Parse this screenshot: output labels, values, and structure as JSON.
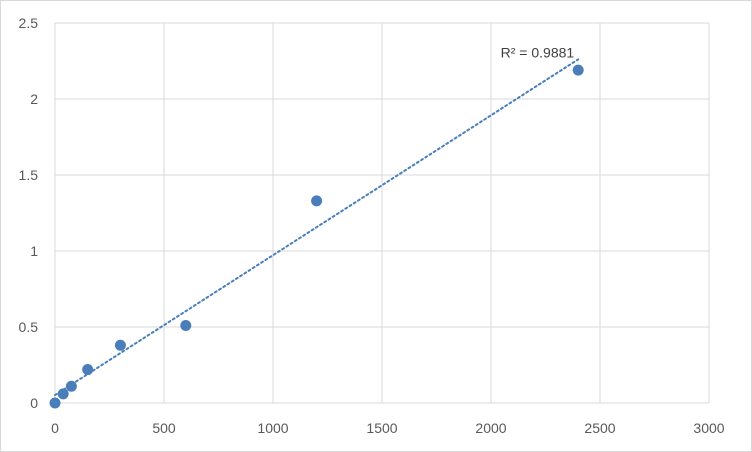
{
  "chart_data": {
    "type": "scatter",
    "title": "",
    "xlabel": "",
    "ylabel": "",
    "xlim": [
      0,
      3000
    ],
    "ylim": [
      0,
      2.5
    ],
    "x_ticks": [
      0,
      500,
      1000,
      1500,
      2000,
      2500,
      3000
    ],
    "y_ticks": [
      0,
      0.5,
      1,
      1.5,
      2,
      2.5
    ],
    "x_tick_labels": [
      "0",
      "500",
      "1000",
      "1500",
      "2000",
      "2500",
      "3000"
    ],
    "y_tick_labels": [
      "0",
      "0.5",
      "1",
      "1.5",
      "2",
      "2.5"
    ],
    "grid": true,
    "legend": "none",
    "series": [
      {
        "x": [
          0,
          37.5,
          75,
          150,
          300,
          600,
          1200,
          2400
        ],
        "y": [
          0.0,
          0.06,
          0.11,
          0.22,
          0.38,
          0.51,
          1.33,
          2.19
        ]
      }
    ],
    "trendline": {
      "type": "linear",
      "style": "dotted",
      "x_range": [
        0,
        2400
      ],
      "label": "R² = 0.9881"
    },
    "colors": {
      "marker": "#4a7ebb",
      "trendline": "#4a7ebb",
      "grid": "#d9d9d9"
    }
  }
}
